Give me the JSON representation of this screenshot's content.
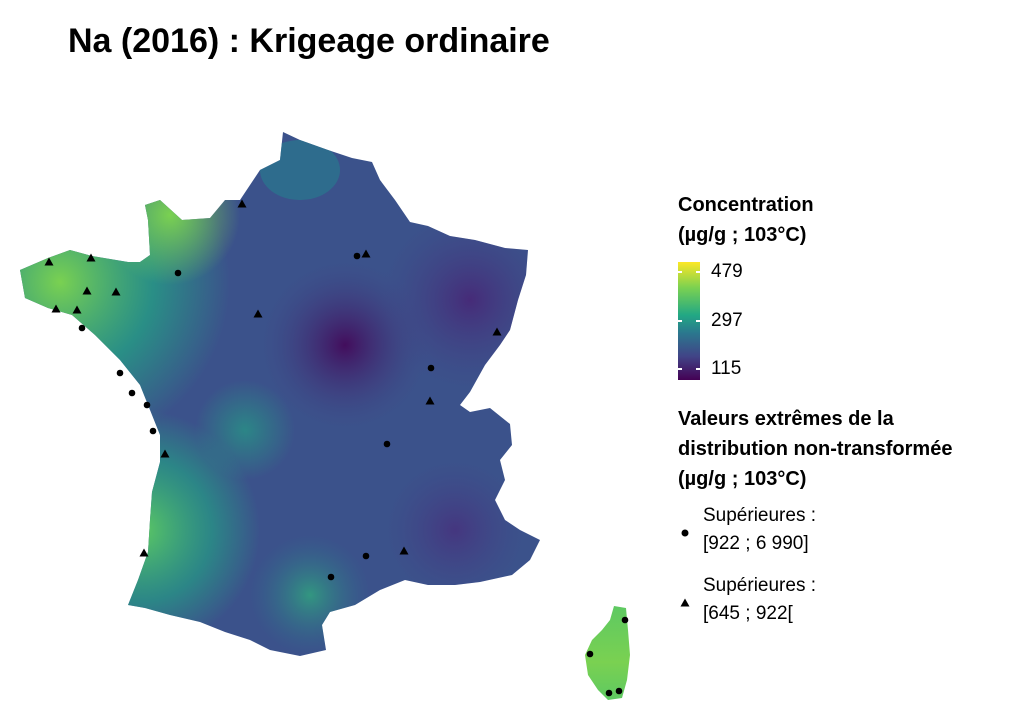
{
  "title": "Na (2016) : Krigeage ordinaire",
  "colors": {
    "viridis": [
      "#440154",
      "#414487",
      "#2a788e",
      "#22a884",
      "#7ad151",
      "#fde725"
    ],
    "marker": "#000000"
  },
  "legend": {
    "concentration_title_line1": "Concentration",
    "concentration_title_line2": "(µg/g ; 103°C)",
    "scale": {
      "max": "479",
      "mid": "297",
      "min": "115"
    },
    "extremes_title_line1": "Valeurs extrêmes de la",
    "extremes_title_line2": "distribution non-transformée",
    "extremes_title_line3": "(µg/g ; 103°C)",
    "circle_label_line1": "Supérieures :",
    "circle_label_line2": "[922 ; 6 990]",
    "triangle_label_line1": "Supérieures :",
    "triangle_label_line2": "[645 ; 922["
  },
  "map": {
    "icons": {
      "circle": "circle-marker-icon",
      "triangle": "triangle-marker-icon"
    },
    "circle_count": 17,
    "triangle_count": 14
  }
}
